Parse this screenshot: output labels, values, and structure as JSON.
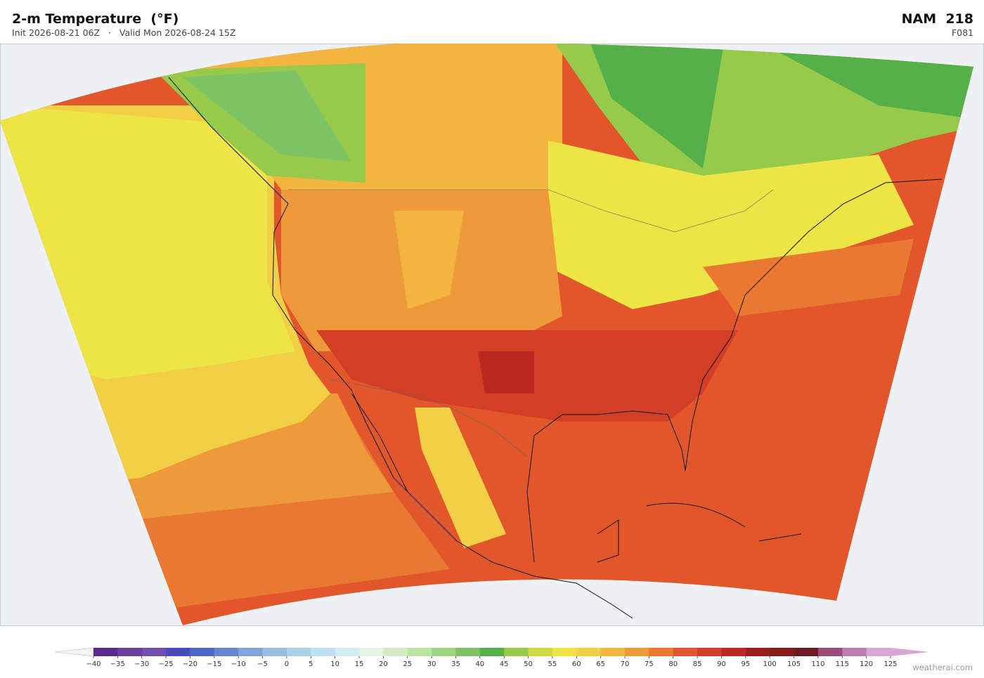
{
  "header": {
    "title": "2-m Temperature  (°F)",
    "init": "Init 2026-08-21 06Z",
    "separator": "·",
    "valid": "Valid Mon 2026-08-24 15Z",
    "model": "NAM  218",
    "forecast_hour": "F081"
  },
  "colorbar": {
    "ticks": [
      {
        "value": -40,
        "label": "−40"
      },
      {
        "value": -35,
        "label": "−35"
      },
      {
        "value": -30,
        "label": "−30"
      },
      {
        "value": -25,
        "label": "−25"
      },
      {
        "value": -20,
        "label": "−20"
      },
      {
        "value": -15,
        "label": "−15"
      },
      {
        "value": -10,
        "label": "−10"
      },
      {
        "value": -5,
        "label": "−5"
      },
      0,
      5,
      10,
      15,
      20,
      25,
      30,
      35,
      40,
      45,
      50,
      55,
      60,
      65,
      70,
      75,
      80,
      85,
      90,
      95,
      100,
      105,
      110,
      115,
      120,
      125
    ],
    "colors": [
      "#5b2a8e",
      "#6a3d9a",
      "#6f4fb0",
      "#4a4bbf",
      "#4f67c8",
      "#6688d0",
      "#7fa6d9",
      "#94bfe0",
      "#a9d2e8",
      "#c0e0ee",
      "#d5ecef",
      "#e7f4ea",
      "#d4ecc6",
      "#bde3a0",
      "#9fd57e",
      "#7ec465",
      "#55b04a",
      "#97c94a",
      "#cddc45",
      "#ede446",
      "#f3cf45",
      "#f2b540",
      "#ef9a3a",
      "#e97932",
      "#e2562b",
      "#d23e26",
      "#bb2a22",
      "#9c1f1f",
      "#861a1d",
      "#6f1a23",
      "#9b4a7a",
      "#c07ab0",
      "#d8a6cf"
    ],
    "under_color": "#f6f6f9",
    "over_color": "#d8a6cf"
  },
  "watermark": "weatherai.com"
}
